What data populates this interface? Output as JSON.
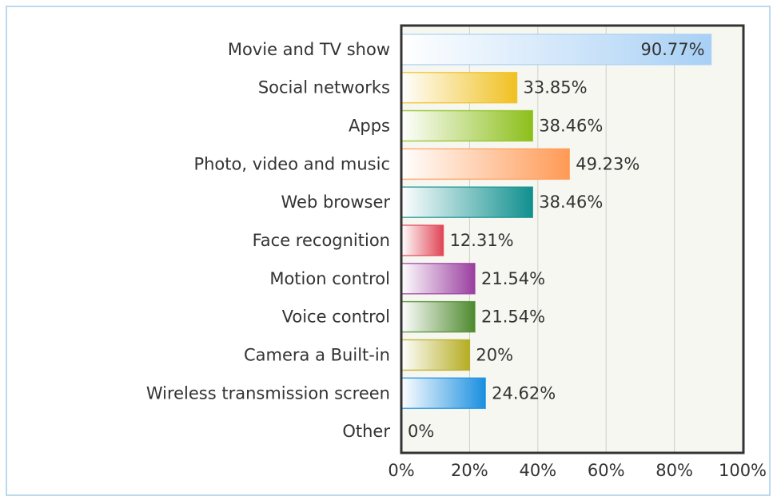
{
  "chart_data": {
    "type": "bar",
    "orientation": "horizontal",
    "categories": [
      "Movie and TV show",
      "Social networks",
      "Apps",
      "Photo, video and music",
      "Web browser",
      "Face recognition",
      "Motion control",
      "Voice control",
      "Camera a Built-in",
      "Wireless transmission screen",
      "Other"
    ],
    "values": [
      90.77,
      33.85,
      38.46,
      49.23,
      38.46,
      12.31,
      21.54,
      21.54,
      20,
      24.62,
      0
    ],
    "value_labels": [
      "90.77%",
      "33.85%",
      "38.46%",
      "49.23%",
      "38.46%",
      "12.31%",
      "21.54%",
      "21.54%",
      "20%",
      "24.62%",
      "0%"
    ],
    "colors": [
      "#a8d0f5",
      "#f0c020",
      "#8cbf1a",
      "#ff9a55",
      "#10908f",
      "#e04555",
      "#9a3f9f",
      "#4f8a2e",
      "#b5ad22",
      "#1a8fe0",
      "#cccccc"
    ],
    "xlim": [
      0,
      100
    ],
    "xticks": [
      {
        "value": 0,
        "label": "0%"
      },
      {
        "value": 20,
        "label": "20%"
      },
      {
        "value": 40,
        "label": "40%"
      },
      {
        "value": 60,
        "label": "60%"
      },
      {
        "value": 80,
        "label": "80%"
      },
      {
        "value": 100,
        "label": "100%"
      }
    ],
    "grid": true
  }
}
